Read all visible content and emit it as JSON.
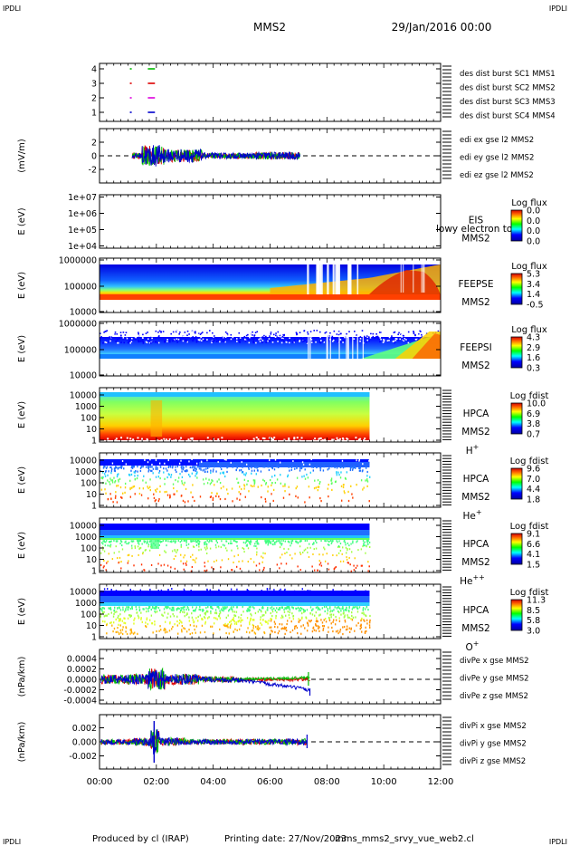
{
  "header": {
    "corner_left": "IPDLI",
    "corner_right": "IPDLI",
    "title": "MMS2",
    "date": "29/Jan/2016 00:00"
  },
  "footer": {
    "produced": "Produced by cl (IRAP)",
    "printing": "Printing date: 27/Nov/2023",
    "file": "mms_mms2_srvy_vue_web2.cl",
    "corner_left": "IPDLI",
    "corner_right": "IPDLI"
  },
  "colors": {
    "sc1": "#0000cc",
    "sc2": "#dd00dd",
    "sc3": "#dd0000",
    "sc4": "#00bb00",
    "x": "#dd0000",
    "y": "#00bb00",
    "z": "#0000cc"
  },
  "chart_data": {
    "type": "line",
    "xaxis": {
      "range": [
        "00:00",
        "12:00"
      ],
      "ticks": [
        "00:00",
        "02:00",
        "04:00",
        "06:00",
        "08:00",
        "10:00",
        "12:00"
      ]
    },
    "panels": [
      {
        "id": "burst",
        "ylabel": "",
        "yticks": [
          "4",
          "3",
          "2",
          "1"
        ],
        "legend": [
          "des dist burst SC1 MMS1",
          "des dist burst SC2 MMS2",
          "des dist burst SC3 MMS3",
          "des dist burst SC4 MMS4"
        ],
        "legend_colors": [
          "sc1",
          "sc2",
          "sc3",
          "sc4"
        ]
      },
      {
        "id": "edi",
        "ylabel": "(mV/m)",
        "yticks": [
          "2",
          "0",
          "-2"
        ],
        "legend": [
          "edi ex gse l2 MMS2",
          "edi ey gse l2 MMS2",
          "edi ez gse l2 MMS2"
        ],
        "legend_colors": [
          "x",
          "y",
          "z"
        ]
      },
      {
        "id": "eis",
        "ylabel": "E (eV)",
        "yticks": [
          "1e+07",
          "1e+06",
          "1e+05",
          "1e+04"
        ],
        "labels": [
          "EIS",
          "MMS2"
        ],
        "overlay": "lowy electron to",
        "cbar_title": "Log flux",
        "cbar_ticks": [
          "0.0",
          "0.0",
          "0.0",
          "0.0"
        ]
      },
      {
        "id": "feepse",
        "ylabel": "E (eV)",
        "yticks": [
          "1000000",
          "100000",
          "10000"
        ],
        "labels": [
          "FEEPSE",
          "MMS2"
        ],
        "cbar_title": "Log flux",
        "cbar_ticks": [
          "5.3",
          "3.4",
          "1.4",
          "-0.5"
        ]
      },
      {
        "id": "feepsi",
        "ylabel": "E (eV)",
        "yticks": [
          "1000000",
          "100000",
          "10000"
        ],
        "labels": [
          "FEEPSI",
          "MMS2"
        ],
        "cbar_title": "Log flux",
        "cbar_ticks": [
          "4.3",
          "2.9",
          "1.6",
          "0.3"
        ]
      },
      {
        "id": "hpca_h",
        "ylabel": "E (eV)",
        "yticks": [
          "10000",
          "1000",
          "100",
          "10",
          "1"
        ],
        "labels": [
          "HPCA",
          "MMS2"
        ],
        "species": "H",
        "charge": "+",
        "cbar_title": "Log fdist",
        "cbar_ticks": [
          "10.0",
          "6.9",
          "3.8",
          "0.7"
        ]
      },
      {
        "id": "hpca_he",
        "ylabel": "E (eV)",
        "yticks": [
          "10000",
          "1000",
          "100",
          "10",
          "1"
        ],
        "labels": [
          "HPCA",
          "MMS2"
        ],
        "species": "He",
        "charge": "+",
        "cbar_title": "Log fdist",
        "cbar_ticks": [
          "9.6",
          "7.0",
          "4.4",
          "1.8"
        ]
      },
      {
        "id": "hpca_hepp",
        "ylabel": "E (eV)",
        "yticks": [
          "10000",
          "1000",
          "100",
          "10",
          "1"
        ],
        "labels": [
          "HPCA",
          "MMS2"
        ],
        "species": "He",
        "charge": "++",
        "cbar_title": "Log fdist",
        "cbar_ticks": [
          "9.1",
          "6.6",
          "4.1",
          "1.5"
        ]
      },
      {
        "id": "hpca_o",
        "ylabel": "E (eV)",
        "yticks": [
          "10000",
          "1000",
          "100",
          "10",
          "1"
        ],
        "labels": [
          "HPCA",
          "MMS2"
        ],
        "species": "O",
        "charge": "+",
        "cbar_title": "Log fdist",
        "cbar_ticks": [
          "11.3",
          "8.5",
          "5.8",
          "3.0"
        ]
      },
      {
        "id": "divpe",
        "ylabel": "(nPa/km)",
        "yticks": [
          "0.0004",
          "0.0002",
          "0.0000",
          "-0.0002",
          "-0.0004"
        ],
        "legend": [
          "divPe x gse MMS2",
          "divPe y gse MMS2",
          "divPe z gse MMS2"
        ],
        "legend_colors": [
          "x",
          "y",
          "z"
        ]
      },
      {
        "id": "divpi",
        "ylabel": "(nPa/km)",
        "yticks": [
          "0.002",
          "0.000",
          "-0.002"
        ],
        "legend": [
          "divPi x gse MMS2",
          "divPi y gse MMS2",
          "divPi z gse MMS2"
        ],
        "legend_colors": [
          "x",
          "y",
          "z"
        ]
      }
    ]
  }
}
